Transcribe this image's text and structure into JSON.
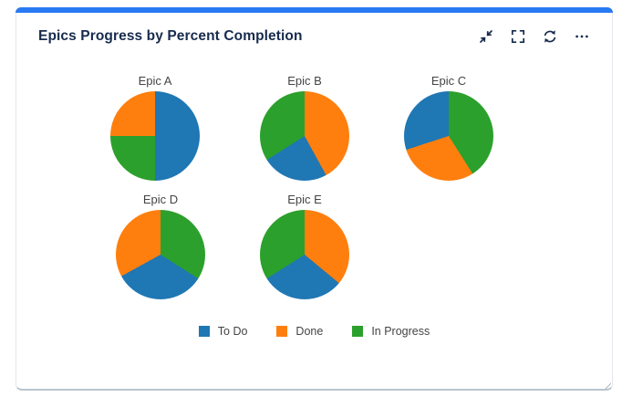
{
  "card": {
    "title": "Epics Progress by Percent Completion",
    "accent_color": "#2979f2",
    "title_color": "#172b4d",
    "icon_color": "#172b4d",
    "toolbar": {
      "icons": [
        "collapse",
        "fullscreen",
        "refresh",
        "more-options"
      ]
    }
  },
  "chart_data": {
    "type": "pie",
    "title": "Epics Progress by Percent Completion",
    "categories": [
      "To Do",
      "Done",
      "In Progress"
    ],
    "colors": {
      "To Do": "#1f77b4",
      "Done": "#ff7f0e",
      "In Progress": "#2ca02c"
    },
    "unit": "percent",
    "slice_order": "clockwise-from-12-oclock",
    "legend": {
      "position": "bottom",
      "entries": [
        {
          "label": "To Do",
          "color": "#1f77b4"
        },
        {
          "label": "Done",
          "color": "#ff7f0e"
        },
        {
          "label": "In Progress",
          "color": "#2ca02c"
        }
      ]
    },
    "pies": [
      {
        "label": "Epic A",
        "slices": [
          {
            "name": "To Do",
            "value": 50
          },
          {
            "name": "In Progress",
            "value": 25
          },
          {
            "name": "Done",
            "value": 25
          }
        ]
      },
      {
        "label": "Epic B",
        "slices": [
          {
            "name": "Done",
            "value": 42
          },
          {
            "name": "To Do",
            "value": 24
          },
          {
            "name": "In Progress",
            "value": 34
          }
        ]
      },
      {
        "label": "Epic C",
        "slices": [
          {
            "name": "In Progress",
            "value": 41
          },
          {
            "name": "Done",
            "value": 29
          },
          {
            "name": "To Do",
            "value": 30
          }
        ]
      },
      {
        "label": "Epic D",
        "slices": [
          {
            "name": "In Progress",
            "value": 34
          },
          {
            "name": "To Do",
            "value": 33
          },
          {
            "name": "Done",
            "value": 33
          }
        ]
      },
      {
        "label": "Epic E",
        "slices": [
          {
            "name": "Done",
            "value": 36
          },
          {
            "name": "To Do",
            "value": 30
          },
          {
            "name": "In Progress",
            "value": 34
          }
        ]
      }
    ]
  }
}
